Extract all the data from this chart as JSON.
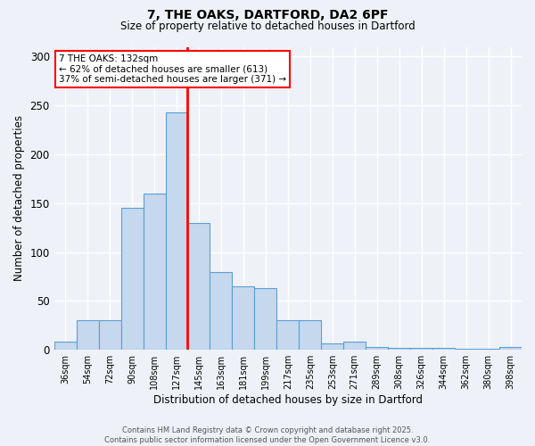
{
  "title_line1": "7, THE OAKS, DARTFORD, DA2 6PF",
  "title_line2": "Size of property relative to detached houses in Dartford",
  "xlabel": "Distribution of detached houses by size in Dartford",
  "ylabel": "Number of detached properties",
  "categories": [
    "36sqm",
    "54sqm",
    "72sqm",
    "90sqm",
    "108sqm",
    "127sqm",
    "145sqm",
    "163sqm",
    "181sqm",
    "199sqm",
    "217sqm",
    "235sqm",
    "253sqm",
    "271sqm",
    "289sqm",
    "308sqm",
    "326sqm",
    "344sqm",
    "362sqm",
    "380sqm",
    "398sqm"
  ],
  "values": [
    8,
    30,
    30,
    145,
    160,
    243,
    130,
    80,
    65,
    63,
    30,
    30,
    7,
    8,
    3,
    2,
    2,
    2,
    1,
    1,
    3
  ],
  "bar_color": "#c5d8ed",
  "bar_edge_color": "#5a9fd4",
  "marker_index": 5,
  "marker_label": "7 THE OAKS: 132sqm",
  "marker_line_color": "red",
  "annotation_line1": "7 THE OAKS: 132sqm",
  "annotation_line2": "← 62% of detached houses are smaller (613)",
  "annotation_line3": "37% of semi-detached houses are larger (371) →",
  "annotation_box_color": "white",
  "annotation_box_edge_color": "red",
  "footer_line1": "Contains HM Land Registry data © Crown copyright and database right 2025.",
  "footer_line2": "Contains public sector information licensed under the Open Government Licence v3.0.",
  "ylim": [
    0,
    310
  ],
  "yticks": [
    0,
    50,
    100,
    150,
    200,
    250,
    300
  ],
  "background_color": "#eef2f8",
  "grid_color": "white"
}
